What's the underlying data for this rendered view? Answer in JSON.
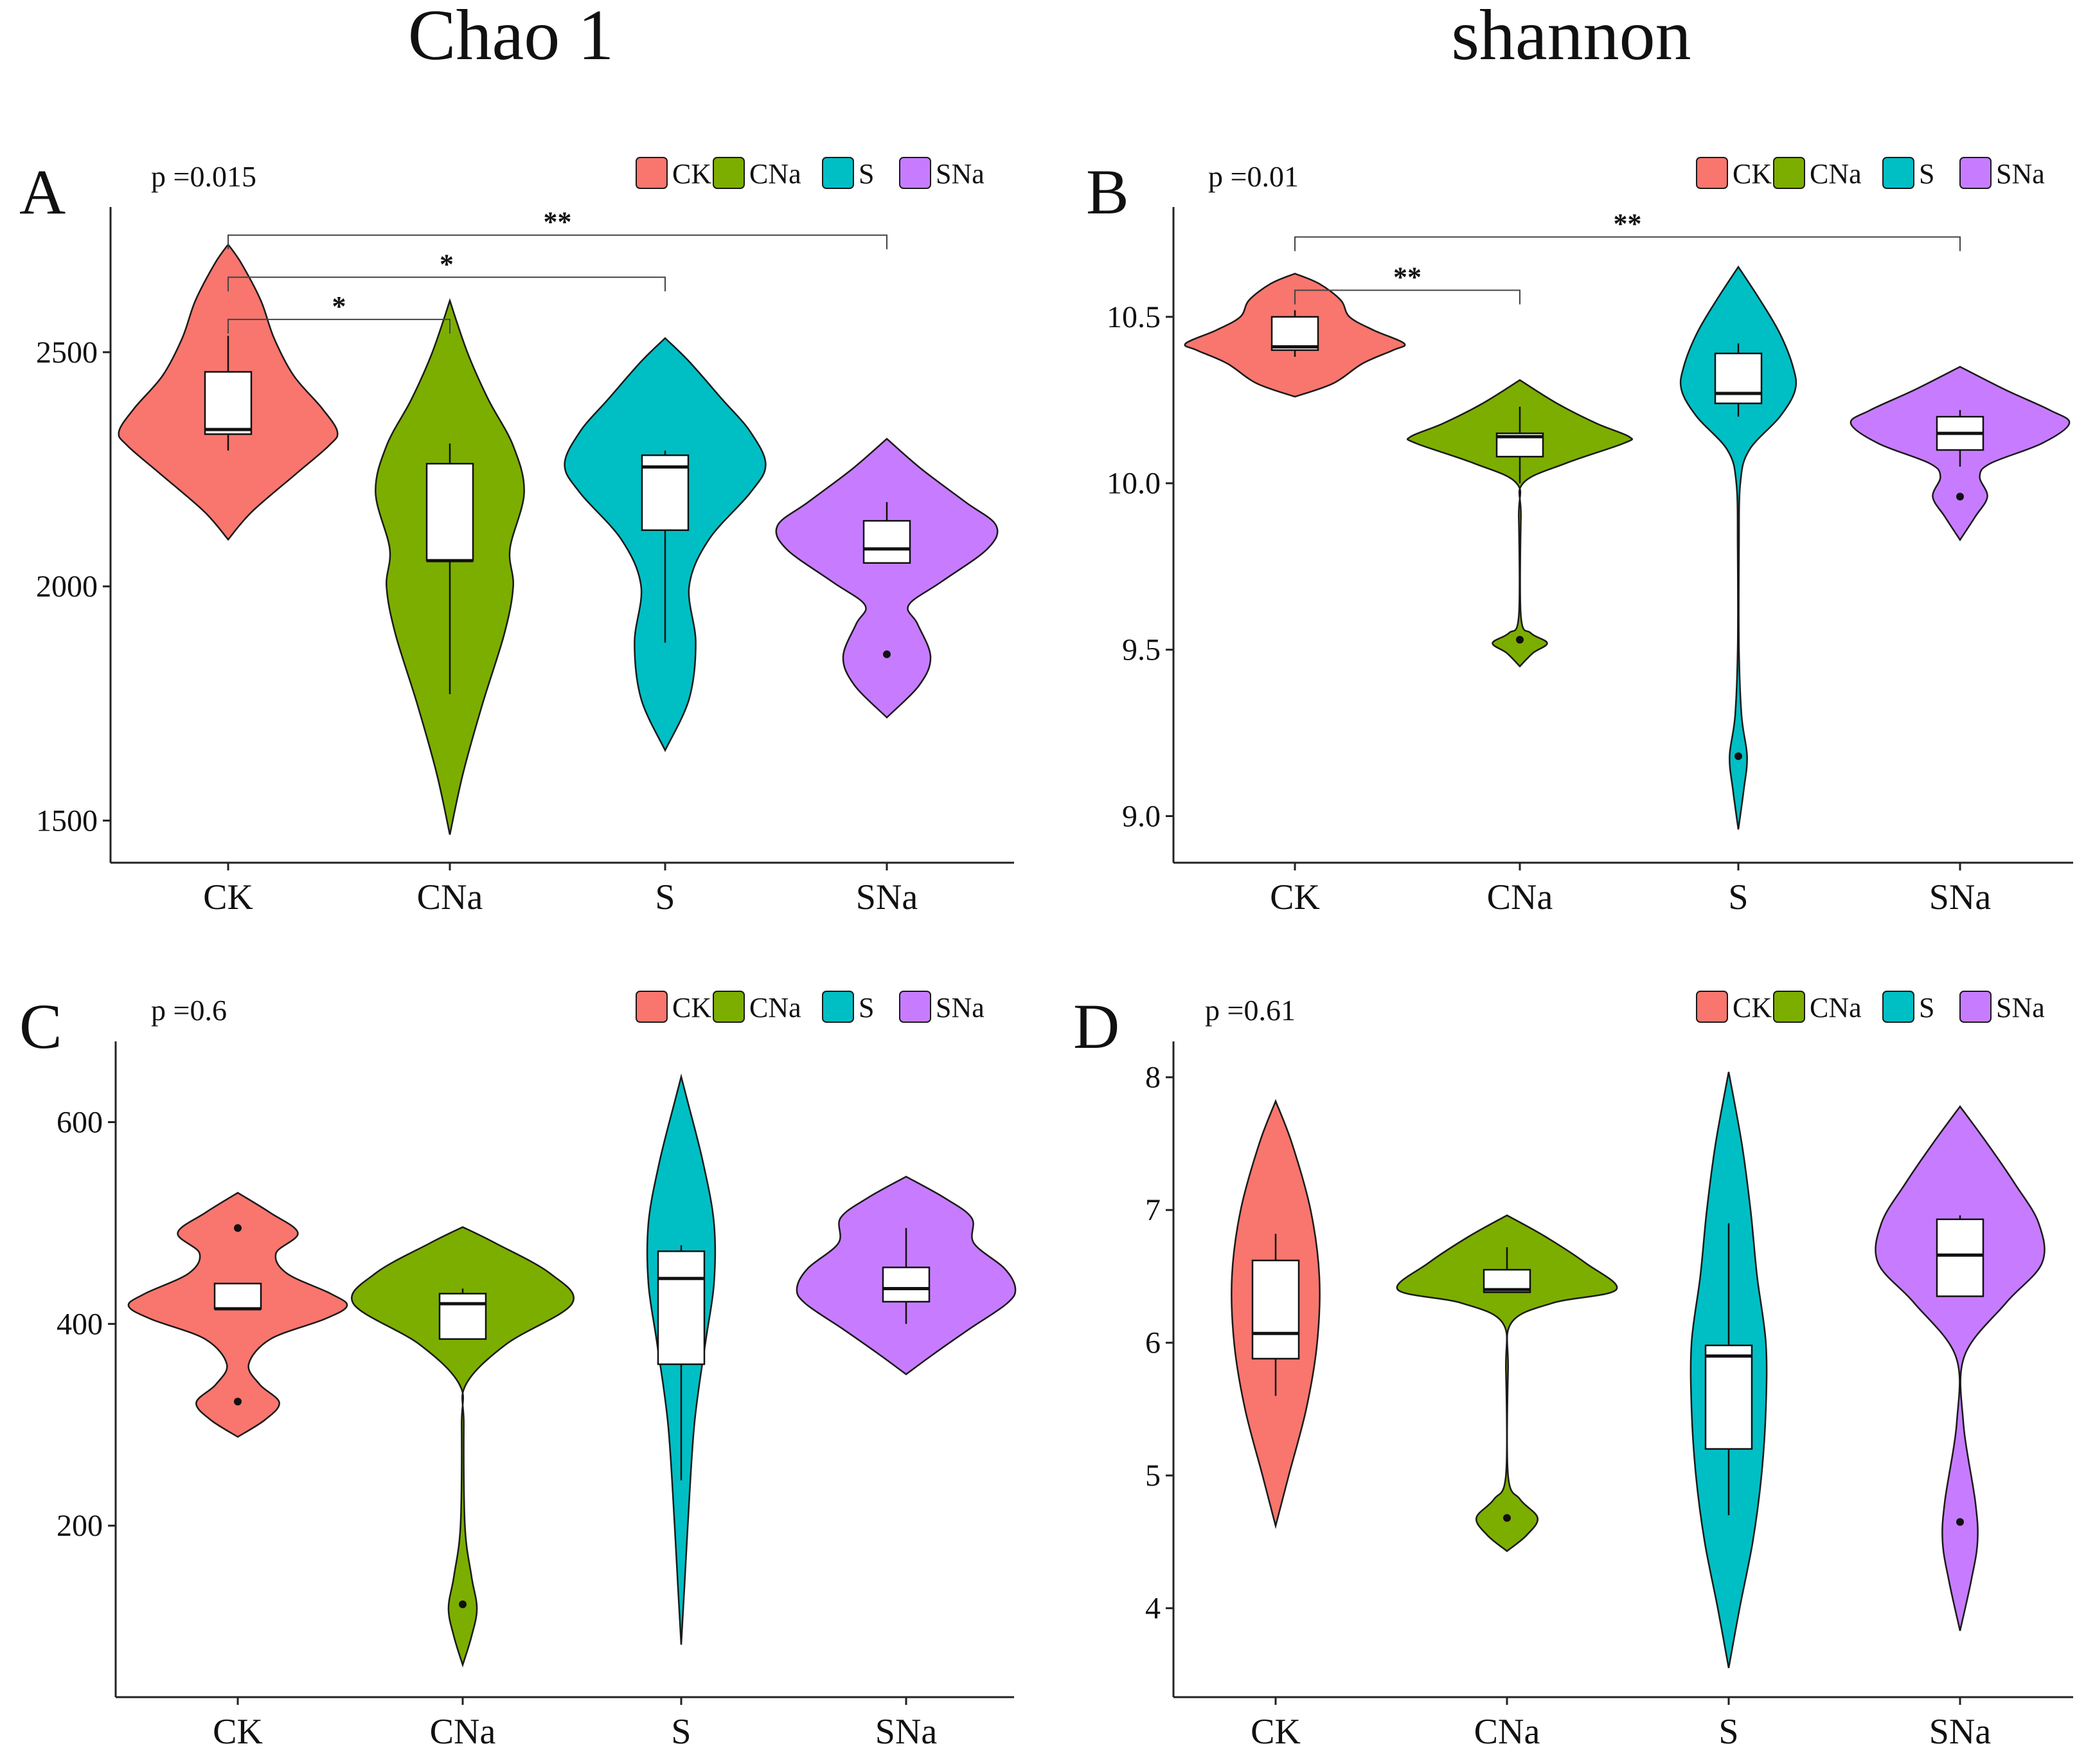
{
  "titles": {
    "left": "Chao 1",
    "right": "shannon"
  },
  "colors": {
    "CK": "#F8766D",
    "CNa": "#7CAE00",
    "S": "#00BFC4",
    "SNa": "#C77CFF",
    "outline": "#1a1a1a",
    "box": "#ffffff"
  },
  "chart_data": [
    {
      "id": "A",
      "type": "violin",
      "letter": "A",
      "ptext": "p =0.015",
      "categories": [
        "CK",
        "CNa",
        "S",
        "SNa"
      ],
      "legend": [
        "CK",
        "CNa",
        "S",
        "SNa"
      ],
      "ylim": [
        1410,
        2810
      ],
      "yticks": [
        1500,
        2000,
        2500
      ],
      "groups": [
        {
          "name": "CK",
          "vmin": 2100,
          "vmax": 2730,
          "profile": [
            [
              2100,
              0
            ],
            [
              2160,
              0.22
            ],
            [
              2240,
              0.62
            ],
            [
              2300,
              0.92
            ],
            [
              2330,
              1
            ],
            [
              2380,
              0.86
            ],
            [
              2450,
              0.6
            ],
            [
              2530,
              0.42
            ],
            [
              2610,
              0.3
            ],
            [
              2690,
              0.12
            ],
            [
              2730,
              0
            ]
          ],
          "box": {
            "lw": 2290,
            "q1": 2325,
            "median": 2335,
            "q3": 2458,
            "uw": 2535
          },
          "points": []
        },
        {
          "name": "CNa",
          "vmin": 1470,
          "vmax": 2610,
          "profile": [
            [
              1470,
              0
            ],
            [
              1600,
              0.12
            ],
            [
              1750,
              0.3
            ],
            [
              1900,
              0.5
            ],
            [
              2000,
              0.58
            ],
            [
              2080,
              0.55
            ],
            [
              2200,
              0.68
            ],
            [
              2300,
              0.58
            ],
            [
              2400,
              0.35
            ],
            [
              2500,
              0.16
            ],
            [
              2610,
              0
            ]
          ],
          "box": {
            "lw": 1770,
            "q1": 2055,
            "median": 2055,
            "q3": 2262,
            "uw": 2305
          },
          "points": []
        },
        {
          "name": "S",
          "vmin": 1650,
          "vmax": 2530,
          "profile": [
            [
              1650,
              0
            ],
            [
              1760,
              0.22
            ],
            [
              1880,
              0.28
            ],
            [
              2000,
              0.22
            ],
            [
              2100,
              0.4
            ],
            [
              2200,
              0.78
            ],
            [
              2260,
              0.92
            ],
            [
              2330,
              0.78
            ],
            [
              2400,
              0.52
            ],
            [
              2480,
              0.22
            ],
            [
              2530,
              0
            ]
          ],
          "box": {
            "lw": 1880,
            "q1": 2120,
            "median": 2255,
            "q3": 2280,
            "uw": 2290
          },
          "points": []
        },
        {
          "name": "SNa",
          "vmin": 1720,
          "vmax": 2315,
          "profile": [
            [
              1720,
              0
            ],
            [
              1790,
              0.3
            ],
            [
              1850,
              0.4
            ],
            [
              1920,
              0.28
            ],
            [
              1960,
              0.2
            ],
            [
              2010,
              0.5
            ],
            [
              2080,
              0.92
            ],
            [
              2130,
              1
            ],
            [
              2180,
              0.72
            ],
            [
              2250,
              0.32
            ],
            [
              2315,
              0
            ]
          ],
          "box": {
            "lw": 2050,
            "q1": 2050,
            "median": 2080,
            "q3": 2140,
            "uw": 2180
          },
          "points": [
            1855
          ]
        }
      ],
      "comparisons": [
        {
          "from": "CK",
          "to": "CNa",
          "y": 2570,
          "label": "*"
        },
        {
          "from": "CK",
          "to": "S",
          "y": 2660,
          "label": "*"
        },
        {
          "from": "CK",
          "to": "SNa",
          "y": 2750,
          "label": "**"
        }
      ]
    },
    {
      "id": "B",
      "type": "violin",
      "letter": "B",
      "ptext": "p =0.01",
      "categories": [
        "CK",
        "CNa",
        "S",
        "SNa"
      ],
      "legend": [
        "CK",
        "CNa",
        "S",
        "SNa"
      ],
      "ylim": [
        8.86,
        10.83
      ],
      "yticks": [
        9.0,
        9.5,
        10.0,
        10.5
      ],
      "tickFormat": "fixed1",
      "groups": [
        {
          "name": "CK",
          "vmin": 10.26,
          "vmax": 10.63,
          "profile": [
            [
              10.26,
              0
            ],
            [
              10.3,
              0.35
            ],
            [
              10.36,
              0.62
            ],
            [
              10.4,
              0.9
            ],
            [
              10.42,
              1
            ],
            [
              10.46,
              0.72
            ],
            [
              10.5,
              0.5
            ],
            [
              10.55,
              0.42
            ],
            [
              10.6,
              0.22
            ],
            [
              10.63,
              0
            ]
          ],
          "box": {
            "lw": 10.38,
            "q1": 10.4,
            "median": 10.41,
            "q3": 10.5,
            "uw": 10.52
          },
          "points": []
        },
        {
          "name": "CNa",
          "vmin": 9.45,
          "vmax": 10.31,
          "profile": [
            [
              9.45,
              0
            ],
            [
              9.49,
              0.12
            ],
            [
              9.52,
              0.25
            ],
            [
              9.55,
              0.1
            ],
            [
              9.6,
              0.01
            ],
            [
              9.9,
              0.01
            ],
            [
              10.0,
              0.03
            ],
            [
              10.06,
              0.42
            ],
            [
              10.12,
              0.95
            ],
            [
              10.14,
              1
            ],
            [
              10.18,
              0.7
            ],
            [
              10.24,
              0.34
            ],
            [
              10.31,
              0
            ]
          ],
          "box": {
            "lw": 10.0,
            "q1": 10.08,
            "median": 10.14,
            "q3": 10.15,
            "uw": 10.23
          },
          "points": [
            9.53
          ]
        },
        {
          "name": "S",
          "vmin": 8.96,
          "vmax": 10.65,
          "profile": [
            [
              8.96,
              0
            ],
            [
              9.08,
              0.05
            ],
            [
              9.18,
              0.08
            ],
            [
              9.3,
              0.03
            ],
            [
              9.5,
              0.006
            ],
            [
              9.8,
              0.006
            ],
            [
              10.0,
              0.018
            ],
            [
              10.1,
              0.1
            ],
            [
              10.2,
              0.38
            ],
            [
              10.28,
              0.52
            ],
            [
              10.35,
              0.5
            ],
            [
              10.45,
              0.38
            ],
            [
              10.55,
              0.2
            ],
            [
              10.65,
              0
            ]
          ],
          "box": {
            "lw": 10.2,
            "q1": 10.24,
            "median": 10.27,
            "q3": 10.39,
            "uw": 10.42
          },
          "points": [
            9.18
          ]
        },
        {
          "name": "SNa",
          "vmin": 9.83,
          "vmax": 10.35,
          "profile": [
            [
              9.83,
              0
            ],
            [
              9.9,
              0.14
            ],
            [
              9.96,
              0.25
            ],
            [
              10.02,
              0.18
            ],
            [
              10.06,
              0.28
            ],
            [
              10.12,
              0.75
            ],
            [
              10.18,
              1
            ],
            [
              10.22,
              0.82
            ],
            [
              10.28,
              0.42
            ],
            [
              10.35,
              0
            ]
          ],
          "box": {
            "lw": 10.05,
            "q1": 10.1,
            "median": 10.15,
            "q3": 10.2,
            "uw": 10.22
          },
          "points": [
            9.96
          ]
        }
      ],
      "comparisons": [
        {
          "from": "CK",
          "to": "CNa",
          "y": 10.58,
          "label": "**"
        },
        {
          "from": "CK",
          "to": "SNa",
          "y": 10.74,
          "label": "**"
        }
      ]
    },
    {
      "id": "C",
      "type": "violin",
      "letter": "C",
      "ptext": "p =0.6",
      "categories": [
        "CK",
        "CNa",
        "S",
        "SNa"
      ],
      "legend": [
        "CK",
        "CNa",
        "S",
        "SNa"
      ],
      "ylim": [
        30,
        680
      ],
      "yticks": [
        200,
        400,
        600
      ],
      "groups": [
        {
          "name": "CK",
          "vmin": 288,
          "vmax": 530,
          "profile": [
            [
              288,
              0
            ],
            [
              305,
              0.25
            ],
            [
              322,
              0.38
            ],
            [
              340,
              0.2
            ],
            [
              360,
              0.1
            ],
            [
              385,
              0.3
            ],
            [
              405,
              0.8
            ],
            [
              418,
              1
            ],
            [
              430,
              0.85
            ],
            [
              450,
              0.45
            ],
            [
              470,
              0.35
            ],
            [
              490,
              0.55
            ],
            [
              510,
              0.3
            ],
            [
              530,
              0
            ]
          ],
          "box": {
            "lw": 415,
            "q1": 415,
            "median": 415,
            "q3": 440,
            "uw": 440
          },
          "points": [
            323,
            495
          ]
        },
        {
          "name": "CNa",
          "vmin": 62,
          "vmax": 496,
          "profile": [
            [
              62,
              0
            ],
            [
              90,
              0.08
            ],
            [
              118,
              0.13
            ],
            [
              150,
              0.08
            ],
            [
              200,
              0.02
            ],
            [
              300,
              0.01
            ],
            [
              340,
              0.03
            ],
            [
              380,
              0.4
            ],
            [
              420,
              1
            ],
            [
              450,
              0.8
            ],
            [
              480,
              0.3
            ],
            [
              496,
              0
            ]
          ],
          "box": {
            "lw": 385,
            "q1": 385,
            "median": 420,
            "q3": 430,
            "uw": 435
          },
          "points": [
            122
          ]
        },
        {
          "name": "S",
          "vmin": 82,
          "vmax": 645,
          "profile": [
            [
              82,
              0
            ],
            [
              140,
              0.03
            ],
            [
              200,
              0.06
            ],
            [
              300,
              0.12
            ],
            [
              380,
              0.22
            ],
            [
              440,
              0.3
            ],
            [
              500,
              0.3
            ],
            [
              560,
              0.2
            ],
            [
              620,
              0.06
            ],
            [
              645,
              0
            ]
          ],
          "box": {
            "lw": 245,
            "q1": 360,
            "median": 445,
            "q3": 472,
            "uw": 478
          },
          "points": []
        },
        {
          "name": "SNa",
          "vmin": 350,
          "vmax": 546,
          "profile": [
            [
              350,
              0
            ],
            [
              370,
              0.25
            ],
            [
              395,
              0.58
            ],
            [
              420,
              0.92
            ],
            [
              435,
              1
            ],
            [
              455,
              0.9
            ],
            [
              480,
              0.62
            ],
            [
              505,
              0.6
            ],
            [
              525,
              0.35
            ],
            [
              546,
              0
            ]
          ],
          "box": {
            "lw": 400,
            "q1": 422,
            "median": 435,
            "q3": 456,
            "uw": 495
          },
          "points": []
        }
      ],
      "comparisons": []
    },
    {
      "id": "D",
      "type": "violin",
      "letter": "D",
      "ptext": "p =0.61",
      "categories": [
        "CK",
        "CNa",
        "S",
        "SNa"
      ],
      "legend": [
        "CK",
        "CNa",
        "S",
        "SNa"
      ],
      "ylim": [
        3.33,
        8.27
      ],
      "yticks": [
        4,
        5,
        6,
        7,
        8
      ],
      "groups": [
        {
          "name": "CK",
          "vmin": 4.62,
          "vmax": 7.82,
          "profile": [
            [
              4.62,
              0
            ],
            [
              5.0,
              0.12
            ],
            [
              5.5,
              0.28
            ],
            [
              6.0,
              0.38
            ],
            [
              6.5,
              0.4
            ],
            [
              7.0,
              0.32
            ],
            [
              7.5,
              0.15
            ],
            [
              7.82,
              0
            ]
          ],
          "box": {
            "lw": 5.6,
            "q1": 5.88,
            "median": 6.07,
            "q3": 6.62,
            "uw": 6.82
          },
          "points": []
        },
        {
          "name": "CNa",
          "vmin": 4.43,
          "vmax": 6.96,
          "profile": [
            [
              4.43,
              0
            ],
            [
              4.55,
              0.18
            ],
            [
              4.68,
              0.28
            ],
            [
              4.82,
              0.12
            ],
            [
              5.0,
              0.01
            ],
            [
              5.8,
              0.01
            ],
            [
              6.15,
              0.04
            ],
            [
              6.3,
              0.42
            ],
            [
              6.4,
              1
            ],
            [
              6.6,
              0.72
            ],
            [
              6.8,
              0.35
            ],
            [
              6.96,
              0
            ]
          ],
          "box": {
            "lw": 6.38,
            "q1": 6.38,
            "median": 6.4,
            "q3": 6.55,
            "uw": 6.72
          },
          "points": [
            4.68
          ]
        },
        {
          "name": "S",
          "vmin": 3.55,
          "vmax": 8.04,
          "profile": [
            [
              3.55,
              0
            ],
            [
              4.0,
              0.1
            ],
            [
              4.5,
              0.22
            ],
            [
              5.0,
              0.3
            ],
            [
              5.5,
              0.34
            ],
            [
              6.0,
              0.34
            ],
            [
              6.5,
              0.26
            ],
            [
              7.0,
              0.2
            ],
            [
              7.5,
              0.12
            ],
            [
              8.04,
              0
            ]
          ],
          "box": {
            "lw": 4.7,
            "q1": 5.2,
            "median": 5.9,
            "q3": 5.98,
            "uw": 6.9
          },
          "points": []
        },
        {
          "name": "SNa",
          "vmin": 3.83,
          "vmax": 7.78,
          "profile": [
            [
              3.83,
              0
            ],
            [
              4.2,
              0.1
            ],
            [
              4.5,
              0.16
            ],
            [
              4.8,
              0.14
            ],
            [
              5.4,
              0.03
            ],
            [
              5.9,
              0.04
            ],
            [
              6.3,
              0.42
            ],
            [
              6.6,
              0.75
            ],
            [
              6.9,
              0.72
            ],
            [
              7.2,
              0.5
            ],
            [
              7.5,
              0.25
            ],
            [
              7.78,
              0
            ]
          ],
          "box": {
            "lw": 6.35,
            "q1": 6.35,
            "median": 6.66,
            "q3": 6.93,
            "uw": 6.96
          },
          "points": [
            4.65
          ]
        }
      ],
      "comparisons": []
    }
  ]
}
